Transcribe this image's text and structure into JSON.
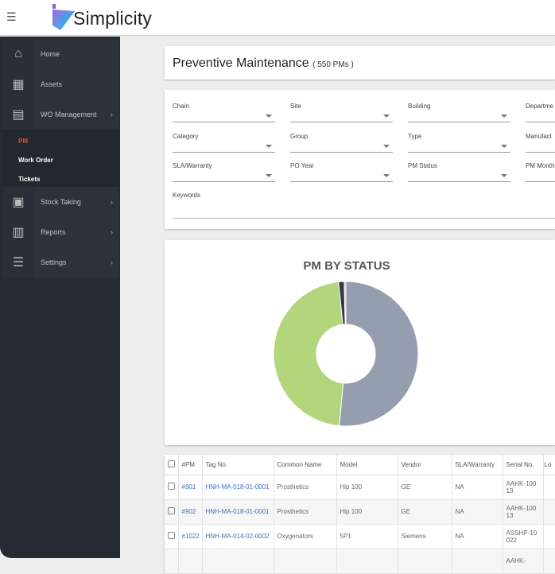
{
  "header": {
    "brand": "Simplicity",
    "menu_icon": "hamburger-icon"
  },
  "sidebar": {
    "items": [
      {
        "label": "Home",
        "icon": "home-icon"
      },
      {
        "label": "Assets",
        "icon": "cubes-icon"
      },
      {
        "label": "WO Management",
        "icon": "newspaper-icon",
        "chevron": "›"
      },
      {
        "label": "Stock Taking",
        "icon": "qrcode-icon",
        "chevron": "›"
      },
      {
        "label": "Reports",
        "icon": "bar-chart-icon",
        "chevron": "›"
      },
      {
        "label": "Settings",
        "icon": "sliders-icon",
        "chevron": "›"
      }
    ],
    "sub_items": [
      {
        "label": "PM",
        "active": true
      },
      {
        "label": "Work Order"
      },
      {
        "label": "Tickets"
      }
    ],
    "active_color": "#e0502a"
  },
  "page": {
    "title": "Preventive Maintenance",
    "count": "( 550 PMs )"
  },
  "filters": [
    "Chain",
    "Site",
    "Building",
    "Departme",
    "Category",
    "Group",
    "Type",
    "Manufact",
    "SLA/Warranty",
    "PO Year",
    "PM Status",
    "PM Month"
  ],
  "keywords_label": "Keywords",
  "chart_data": {
    "type": "pie",
    "donut": true,
    "title": "PM BY STATUS",
    "values": [
      283,
      258,
      7,
      2
    ],
    "colors": [
      "#959eae",
      "#b3d67c",
      "#363b45",
      "#a9d3ee"
    ],
    "legend": "none"
  },
  "table": {
    "headers": [
      "#PM",
      "Tag No.",
      "Common Name",
      "Model",
      "Vendor",
      "SLA/Warranty",
      "Serial No.",
      "Lo"
    ],
    "rows": [
      [
        "#901",
        "HNH-MA-018-01-0001",
        "Prosthetics",
        "Hip 100",
        "GE",
        "NA",
        "AAHK-10013"
      ],
      [
        "#902",
        "HNH-MA-018-01-0001",
        "Prosthetics",
        "Hip 100",
        "GE",
        "NA",
        "AAHK-10013"
      ],
      [
        "#1022",
        "HNH-MA-014-02-0002",
        "Oxygenators",
        "5P1",
        "Siemens",
        "NA",
        "ASSHP-10022"
      ],
      [
        "",
        "",
        "",
        "",
        "",
        "",
        "AAHK-"
      ]
    ]
  }
}
